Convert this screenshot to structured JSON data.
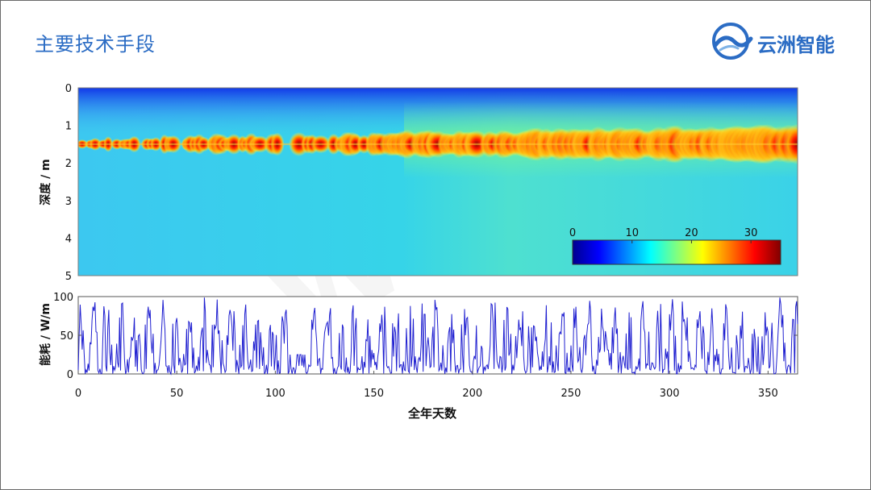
{
  "slide": {
    "title": "主要技术手段",
    "logo_text": "云洲智能",
    "logo_icon": "swirl-logo-icon",
    "accent_color": "#2b6cc4",
    "watermark_text": "WPS"
  },
  "chart_data": [
    {
      "type": "heatmap",
      "ylabel": "深度 / m",
      "y_ticks": [
        "0",
        "1",
        "2",
        "3",
        "4",
        "5"
      ],
      "ylim": [
        0,
        5
      ],
      "y_inverted": true,
      "xlim": [
        0,
        365
      ],
      "hot_layer_depth": 1.5,
      "colorbar": {
        "ticks": [
          "0",
          "10",
          "20",
          "30"
        ],
        "range": [
          0,
          35
        ],
        "colormap": "jet",
        "placement": "inside-bottom-right"
      }
    },
    {
      "type": "line",
      "ylabel": "能耗 / W/m",
      "xlabel": "全年天数",
      "x_ticks": [
        "0",
        "50",
        "100",
        "150",
        "200",
        "250",
        "300",
        "350"
      ],
      "y_ticks": [
        "0",
        "50",
        "100"
      ],
      "xlim": [
        0,
        365
      ],
      "ylim": [
        0,
        100
      ],
      "line_color": "#1f1fd0"
    }
  ]
}
